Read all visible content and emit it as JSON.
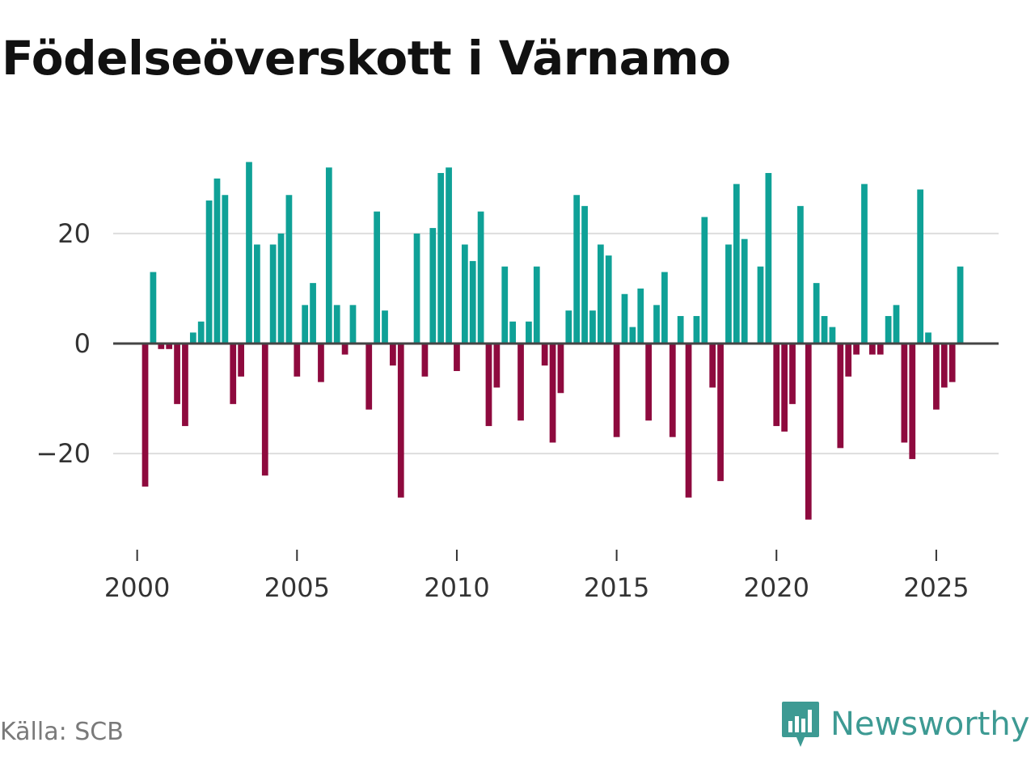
{
  "title": "Födelseöverskott i Värnamo",
  "source": "Källa: SCB",
  "brand": "Newsworthy",
  "colors": {
    "positive": "#0fa197",
    "negative": "#8e0a3e",
    "brand": "#3d9a93",
    "grid": "#dddddd",
    "zero_line": "#444444"
  },
  "chart_data": {
    "type": "bar",
    "title": "Födelseöverskott i Värnamo",
    "xlabel": "",
    "ylabel": "",
    "ylim": [
      -36,
      36
    ],
    "xlim": [
      1999.25,
      2026.95
    ],
    "x_ticks": [
      2000,
      2005,
      2010,
      2015,
      2020,
      2025
    ],
    "y_ticks": [
      -20,
      0,
      20
    ],
    "y_tick_labels": [
      "−20",
      "0",
      "20"
    ],
    "grid": true,
    "series": [
      {
        "name": "Födelseöverskott",
        "frequency": "monthly (every third month shown from 2000 to 2025)",
        "x": [
          2000.25,
          2000.5,
          2000.75,
          2001.0,
          2001.25,
          2001.5,
          2001.75,
          2002.0,
          2002.25,
          2002.5,
          2002.75,
          2003.0,
          2003.25,
          2003.5,
          2003.75,
          2004.0,
          2004.25,
          2004.5,
          2004.75,
          2005.0,
          2005.25,
          2005.5,
          2005.75,
          2006.0,
          2006.25,
          2006.5,
          2006.75,
          2007.0,
          2007.25,
          2007.5,
          2007.75,
          2008.0,
          2008.25,
          2008.5,
          2008.75,
          2009.0,
          2009.25,
          2009.5,
          2009.75,
          2010.0,
          2010.25,
          2010.5,
          2010.75,
          2011.0,
          2011.25,
          2011.5,
          2011.75,
          2012.0,
          2012.25,
          2012.5,
          2012.75,
          2013.0,
          2013.25,
          2013.5,
          2013.75,
          2014.0,
          2014.25,
          2014.5,
          2014.75,
          2015.0,
          2015.25,
          2015.5,
          2015.75,
          2016.0,
          2016.25,
          2016.5,
          2016.75,
          2017.0,
          2017.25,
          2017.5,
          2017.75,
          2018.0,
          2018.25,
          2018.5,
          2018.75,
          2019.0,
          2019.25,
          2019.5,
          2019.75,
          2020.0,
          2020.25,
          2020.5,
          2020.75,
          2021.0,
          2021.25,
          2021.5,
          2021.75,
          2022.0,
          2022.25,
          2022.5,
          2022.75,
          2023.0,
          2023.25,
          2023.5,
          2023.75,
          2024.0,
          2024.25,
          2024.5,
          2024.75,
          2025.0,
          2025.25,
          2025.5,
          2025.75
        ],
        "values": [
          -26,
          13,
          -1,
          -1,
          -11,
          -15,
          2,
          4,
          26,
          30,
          27,
          -11,
          -6,
          33,
          18,
          -24,
          18,
          20,
          27,
          -6,
          7,
          11,
          -7,
          32,
          7,
          -2,
          7,
          0,
          -12,
          24,
          6,
          -4,
          -28,
          0,
          20,
          -6,
          21,
          31,
          32,
          -5,
          18,
          15,
          24,
          -15,
          -8,
          14,
          4,
          -14,
          4,
          14,
          -4,
          -18,
          -9,
          6,
          27,
          25,
          6,
          18,
          16,
          -17,
          9,
          3,
          10,
          -14,
          7,
          13,
          -17,
          5,
          -28,
          5,
          23,
          -8,
          -25,
          18,
          29,
          19,
          0,
          14,
          31,
          -15,
          -16,
          -11,
          25,
          -32,
          11,
          5,
          3,
          -19,
          -6,
          -2,
          29,
          -2,
          -2,
          5,
          7,
          -18,
          -21,
          28,
          2,
          -12,
          -8,
          -7,
          14
        ]
      }
    ]
  }
}
